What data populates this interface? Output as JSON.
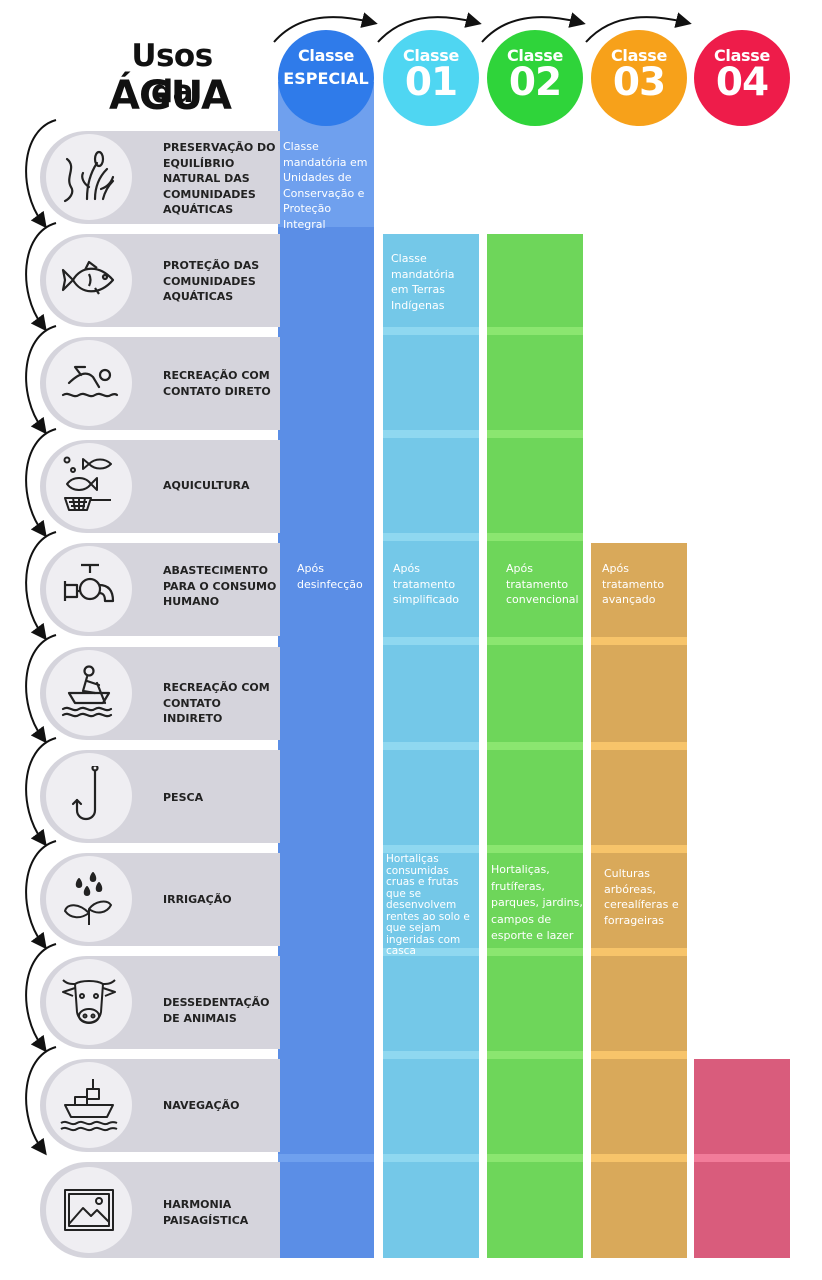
{
  "title": {
    "line1": "Usos da",
    "line2": "ÁGUA"
  },
  "classes": [
    {
      "label": "Classe",
      "name": "ESPECIAL",
      "circle_color": "#2f7bea",
      "column_color": "#5b8ee6"
    },
    {
      "label": "Classe",
      "name": "01",
      "circle_color": "#4fd6f2",
      "column_color": "#74c8e8"
    },
    {
      "label": "Classe",
      "name": "02",
      "circle_color": "#2fd43a",
      "column_color": "#6ed65a"
    },
    {
      "label": "Classe",
      "name": "03",
      "circle_color": "#f7a11a",
      "column_color": "#d9a95a"
    },
    {
      "label": "Classe",
      "name": "04",
      "circle_color": "#ee1c4a",
      "column_color": "#d95c7c"
    }
  ],
  "uses": [
    {
      "label": "PRESERVAÇÃO DO EQUILÍBRIO NATURAL DAS COMUNIDADES AQUÁTICAS",
      "icon": "aquatic-plants-icon"
    },
    {
      "label": "PROTEÇÃO DAS COMUNIDADES AQUÁTICAS",
      "icon": "fish-icon"
    },
    {
      "label": "RECREAÇÃO COM CONTATO DIRETO",
      "icon": "swimmer-icon"
    },
    {
      "label": "AQUICULTURA",
      "icon": "fish-net-icon"
    },
    {
      "label": "ABASTECIMENTO PARA O CONSUMO HUMANO",
      "icon": "faucet-icon"
    },
    {
      "label": "RECREAÇÃO COM CONTATO INDIRETO",
      "icon": "rowing-boat-icon"
    },
    {
      "label": "PESCA",
      "icon": "fish-hook-icon"
    },
    {
      "label": "IRRIGAÇÃO",
      "icon": "seedling-drops-icon"
    },
    {
      "label": "DESSEDENTAÇÃO DE ANIMAIS",
      "icon": "cow-icon"
    },
    {
      "label": "NAVEGAÇÃO",
      "icon": "ship-icon"
    },
    {
      "label": "HARMONIA PAISAGÍSTICA",
      "icon": "landscape-picture-icon"
    }
  ],
  "notes": {
    "especial_preservacao": "Classe mandatória em Unidades de Conservação e Proteção Integral",
    "c01_protecao": "Classe mandatória em Terras Indígenas",
    "especial_abastecimento": "Após desinfecção",
    "c01_abastecimento": "Após tratamento simplificado",
    "c02_abastecimento": "Após tratamento convencional",
    "c03_abastecimento": "Após tratamento avançado",
    "c01_irrigacao": "Hortaliças consumidas cruas e frutas que se desenvolvem rentes ao solo e que sejam ingeridas com casca",
    "c02_irrigacao": "Hortaliças, frutíferas, parques, jardins, campos de esporte e lazer",
    "c03_irrigacao": "Culturas arbóreas, cerealíferas e forrageiras"
  }
}
